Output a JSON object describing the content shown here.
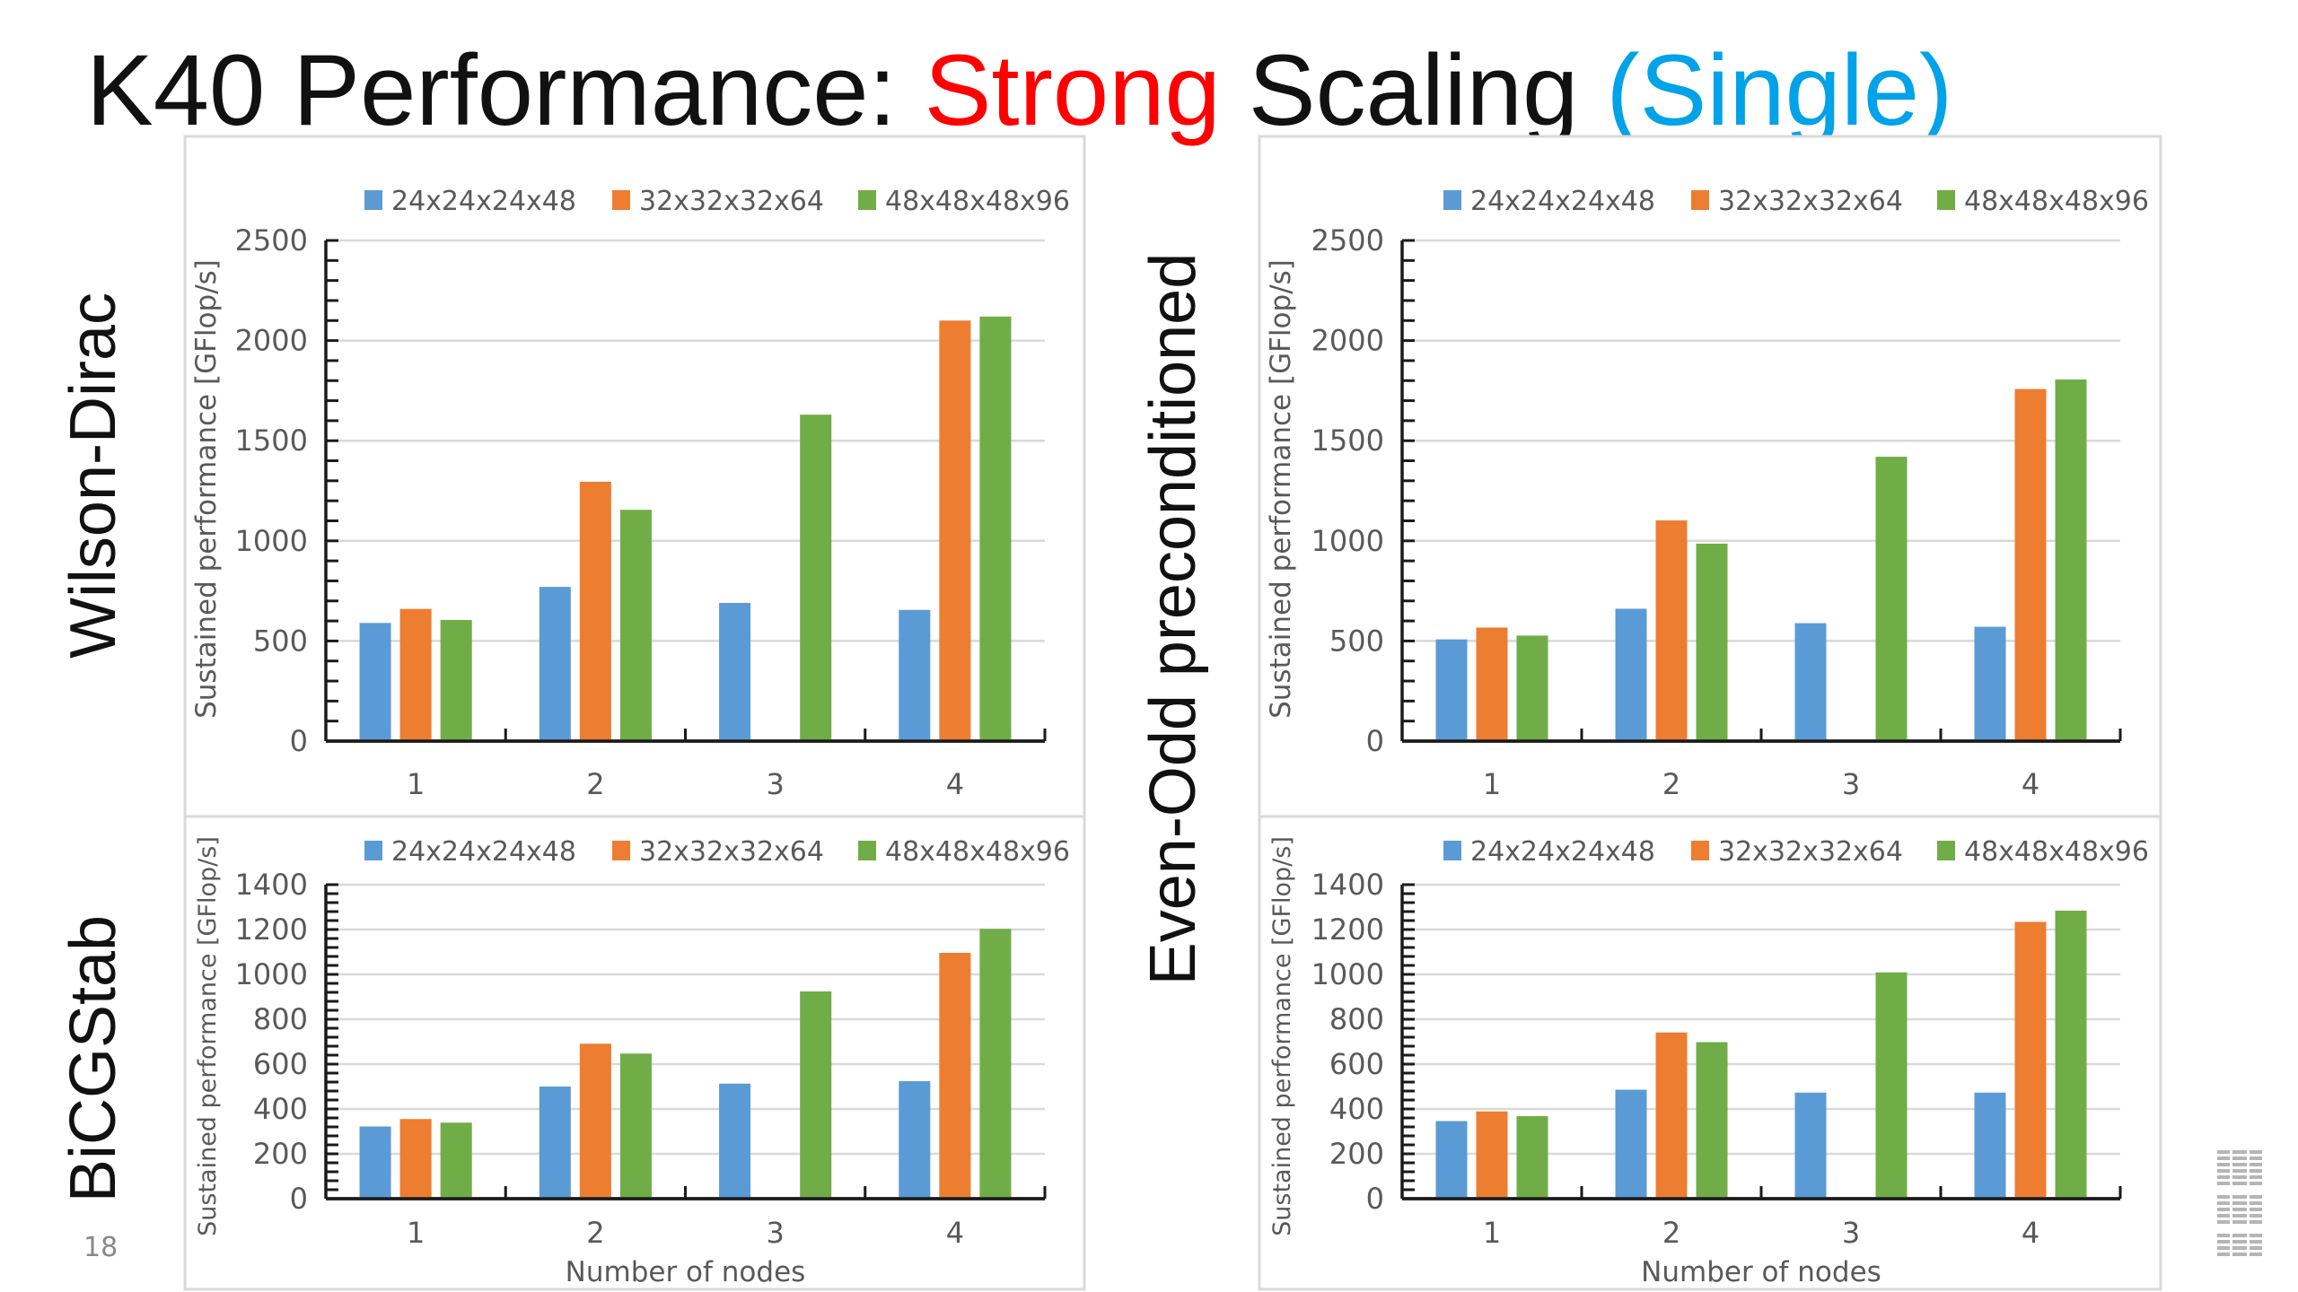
{
  "slide": {
    "title_parts": [
      {
        "text": "K40 Performance: ",
        "color": "#111111"
      },
      {
        "text": "Strong",
        "color": "#ff0000"
      },
      {
        "text": " Scaling ",
        "color": "#111111"
      },
      {
        "text": "(Single)",
        "color": "#00a2e8"
      }
    ],
    "row_labels": {
      "top_left": "Wilson-Dirac",
      "bottom_left": "BiCGStab",
      "middle": "Even-Odd preconditioned"
    },
    "page_number": "18",
    "logo": "IBM",
    "logo_icon": "ibm-logo-icon"
  },
  "series_colors": {
    "24x24x24x48": "#5b9bd5",
    "32x32x32x64": "#ed7d31",
    "48x48x48x96": "#70ad47"
  },
  "chart_data": [
    {
      "id": "wilson-dirac",
      "type": "bar",
      "title": "Wilson-Dirac",
      "xlabel": "",
      "ylabel": "Sustained performance [GFlop/s]",
      "categories": [
        "1",
        "2",
        "3",
        "4"
      ],
      "ylim": [
        0,
        2500
      ],
      "yticks": [
        0,
        500,
        1000,
        1500,
        2000,
        2500
      ],
      "minor_ticks_per_major": 5,
      "grid": true,
      "legend": "top-center",
      "series": [
        {
          "name": "24x24x24x48",
          "values": [
            590,
            770,
            690,
            655
          ]
        },
        {
          "name": "32x32x32x64",
          "values": [
            660,
            1295,
            null,
            2100
          ]
        },
        {
          "name": "48x48x48x96",
          "values": [
            605,
            1155,
            1630,
            2120
          ]
        }
      ]
    },
    {
      "id": "wilson-dirac-even-odd",
      "type": "bar",
      "title": "Wilson-Dirac, Even-Odd preconditioned",
      "xlabel": "",
      "ylabel": "Sustained performance [GFlop/s]",
      "categories": [
        "1",
        "2",
        "3",
        "4"
      ],
      "ylim": [
        0,
        2500
      ],
      "yticks": [
        0,
        500,
        1000,
        1500,
        2000,
        2500
      ],
      "minor_ticks_per_major": 5,
      "grid": true,
      "legend": "top-center",
      "series": [
        {
          "name": "24x24x24x48",
          "values": [
            508,
            661,
            589,
            571
          ]
        },
        {
          "name": "32x32x32x64",
          "values": [
            567,
            1102,
            null,
            1758
          ]
        },
        {
          "name": "48x48x48x96",
          "values": [
            527,
            986,
            1420,
            1806
          ]
        }
      ]
    },
    {
      "id": "bicgstab",
      "type": "bar",
      "title": "BiCGStab",
      "xlabel": "Number of nodes",
      "ylabel": "Sustained performance [GFlop/s]",
      "categories": [
        "1",
        "2",
        "3",
        "4"
      ],
      "ylim": [
        0,
        1400
      ],
      "yticks": [
        0,
        200,
        400,
        600,
        800,
        1000,
        1200,
        1400
      ],
      "minor_ticks_per_major": 5,
      "grid": true,
      "legend": "top-center",
      "series": [
        {
          "name": "24x24x24x48",
          "values": [
            322,
            500,
            513,
            524
          ]
        },
        {
          "name": "32x32x32x64",
          "values": [
            355,
            691,
            null,
            1096
          ]
        },
        {
          "name": "48x48x48x96",
          "values": [
            339,
            647,
            924,
            1203
          ]
        }
      ]
    },
    {
      "id": "bicgstab-even-odd",
      "type": "bar",
      "title": "BiCGStab, Even-Odd preconditioned",
      "xlabel": "Number of nodes",
      "ylabel": "Sustained performance [GFlop/s]",
      "categories": [
        "1",
        "2",
        "3",
        "4"
      ],
      "ylim": [
        0,
        1400
      ],
      "yticks": [
        0,
        200,
        400,
        600,
        800,
        1000,
        1200,
        1400
      ],
      "minor_ticks_per_major": 5,
      "grid": true,
      "legend": "top-center",
      "series": [
        {
          "name": "24x24x24x48",
          "values": [
            346,
            486,
            473,
            473
          ]
        },
        {
          "name": "32x32x32x64",
          "values": [
            389,
            741,
            null,
            1234
          ]
        },
        {
          "name": "48x48x48x96",
          "values": [
            368,
            698,
            1009,
            1284
          ]
        }
      ]
    }
  ]
}
